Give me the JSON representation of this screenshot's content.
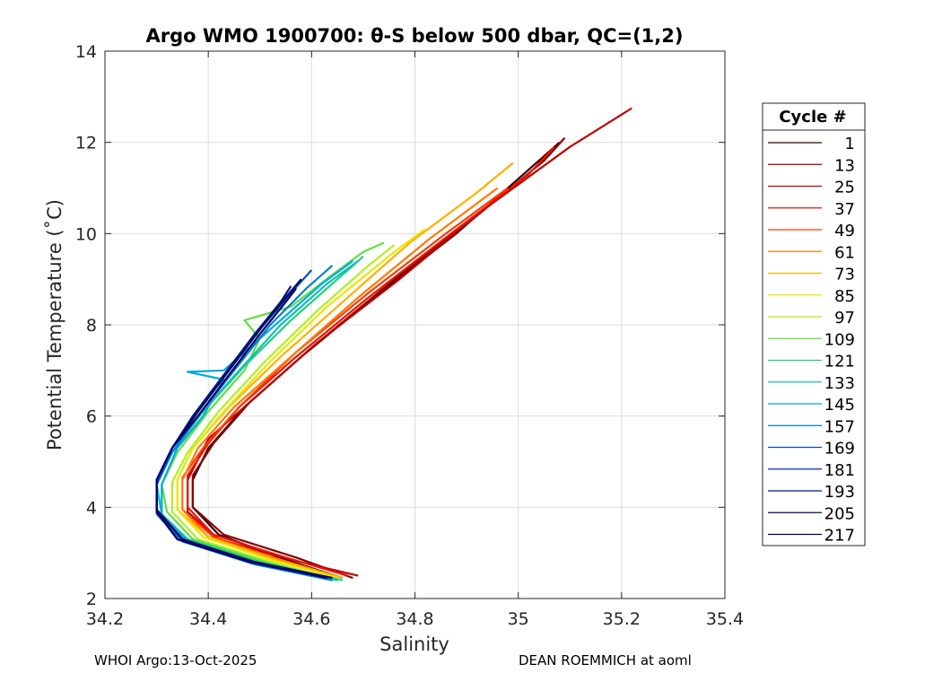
{
  "chart_data": {
    "type": "line",
    "title": "Argo WMO 1900700: θ-S below 500 dbar,  QC=(1,2)",
    "xlabel": "Salinity",
    "ylabel": "Potential Temperature (˚C)",
    "xlim": [
      34.2,
      35.4
    ],
    "ylim": [
      2,
      14
    ],
    "xticks": [
      34.2,
      34.4,
      34.6,
      34.8,
      35,
      35.2,
      35.4
    ],
    "xtick_labels": [
      "34.2",
      "34.4",
      "34.6",
      "34.8",
      "35",
      "35.2",
      "35.4"
    ],
    "yticks": [
      2,
      4,
      6,
      8,
      10,
      12,
      14
    ],
    "ytick_labels": [
      "2",
      "4",
      "6",
      "8",
      "10",
      "12",
      "14"
    ],
    "grid": true,
    "legend": {
      "title": "Cycle #",
      "placement": "right-outside",
      "entries": [
        {
          "label": "1",
          "color": "#3a0000"
        },
        {
          "label": "13",
          "color": "#8b0000"
        },
        {
          "label": "25",
          "color": "#c00000"
        },
        {
          "label": "37",
          "color": "#e81500"
        },
        {
          "label": "49",
          "color": "#ff3a00"
        },
        {
          "label": "61",
          "color": "#ff7a00"
        },
        {
          "label": "73",
          "color": "#ffb000"
        },
        {
          "label": "85",
          "color": "#e8e800"
        },
        {
          "label": "97",
          "color": "#b0f020"
        },
        {
          "label": "109",
          "color": "#60e040"
        },
        {
          "label": "121",
          "color": "#20d080"
        },
        {
          "label": "133",
          "color": "#10c0b0"
        },
        {
          "label": "145",
          "color": "#00a8e0"
        },
        {
          "label": "157",
          "color": "#0080d0"
        },
        {
          "label": "169",
          "color": "#0050c0"
        },
        {
          "label": "181",
          "color": "#0030a0"
        },
        {
          "label": "193",
          "color": "#001880"
        },
        {
          "label": "205",
          "color": "#000c60"
        },
        {
          "label": "217",
          "color": "#000070"
        }
      ]
    },
    "series": [
      {
        "name": "cycle 1",
        "color": "#3a0000",
        "points": [
          [
            34.66,
            2.45
          ],
          [
            34.55,
            2.85
          ],
          [
            34.42,
            3.4
          ],
          [
            34.37,
            4.0
          ],
          [
            34.37,
            4.6
          ],
          [
            34.4,
            5.3
          ],
          [
            34.47,
            6.2
          ],
          [
            34.58,
            7.3
          ],
          [
            34.72,
            8.6
          ],
          [
            34.88,
            10.0
          ],
          [
            35.0,
            11.2
          ],
          [
            35.08,
            12.0
          ]
        ]
      },
      {
        "name": "cycle 13",
        "color": "#8b0000",
        "points": [
          [
            34.68,
            2.45
          ],
          [
            34.57,
            2.9
          ],
          [
            34.43,
            3.4
          ],
          [
            34.37,
            4.0
          ],
          [
            34.37,
            4.7
          ],
          [
            34.41,
            5.4
          ],
          [
            34.48,
            6.3
          ],
          [
            34.6,
            7.5
          ],
          [
            34.75,
            8.9
          ],
          [
            34.91,
            10.3
          ],
          [
            35.05,
            11.6
          ],
          [
            35.09,
            12.1
          ]
        ]
      },
      {
        "name": "cycle 25",
        "color": "#c00000",
        "points": [
          [
            34.69,
            2.5
          ],
          [
            34.56,
            2.85
          ],
          [
            34.42,
            3.3
          ],
          [
            34.36,
            3.9
          ],
          [
            34.36,
            4.6
          ],
          [
            34.4,
            5.5
          ],
          [
            34.49,
            6.4
          ],
          [
            34.61,
            7.6
          ],
          [
            34.77,
            9.0
          ],
          [
            34.93,
            10.5
          ],
          [
            35.1,
            11.9
          ],
          [
            35.22,
            12.75
          ]
        ]
      },
      {
        "name": "cycle 37",
        "color": "#e81500",
        "points": [
          [
            34.67,
            2.5
          ],
          [
            34.55,
            2.9
          ],
          [
            34.41,
            3.4
          ],
          [
            34.36,
            4.0
          ],
          [
            34.36,
            4.7
          ],
          [
            34.4,
            5.4
          ],
          [
            34.46,
            6.2
          ],
          [
            34.57,
            7.3
          ],
          [
            34.71,
            8.6
          ],
          [
            34.87,
            10.0
          ],
          [
            35.02,
            11.3
          ],
          [
            35.07,
            11.9
          ]
        ]
      },
      {
        "name": "cycle 49",
        "color": "#ff3a00",
        "points": [
          [
            34.66,
            2.45
          ],
          [
            34.54,
            2.85
          ],
          [
            34.41,
            3.35
          ],
          [
            34.35,
            3.95
          ],
          [
            34.35,
            4.65
          ],
          [
            34.39,
            5.3
          ],
          [
            34.46,
            6.2
          ],
          [
            34.57,
            7.4
          ],
          [
            34.71,
            8.7
          ],
          [
            34.86,
            10.0
          ],
          [
            34.98,
            11.0
          ]
        ]
      },
      {
        "name": "cycle 61",
        "color": "#ff7a00",
        "points": [
          [
            34.66,
            2.45
          ],
          [
            34.54,
            2.85
          ],
          [
            34.4,
            3.35
          ],
          [
            34.35,
            3.95
          ],
          [
            34.35,
            4.6
          ],
          [
            34.38,
            5.3
          ],
          [
            34.45,
            6.2
          ],
          [
            34.56,
            7.3
          ],
          [
            34.69,
            8.6
          ],
          [
            34.83,
            9.9
          ],
          [
            34.96,
            11.0
          ]
        ]
      },
      {
        "name": "cycle 73",
        "color": "#ffb000",
        "points": [
          [
            34.66,
            2.45
          ],
          [
            34.53,
            2.85
          ],
          [
            34.4,
            3.35
          ],
          [
            34.34,
            3.95
          ],
          [
            34.34,
            4.6
          ],
          [
            34.37,
            5.3
          ],
          [
            34.44,
            6.2
          ],
          [
            34.54,
            7.3
          ],
          [
            34.66,
            8.5
          ],
          [
            34.79,
            9.8
          ],
          [
            34.92,
            10.9
          ],
          [
            34.99,
            11.55
          ]
        ]
      },
      {
        "name": "cycle 85",
        "color": "#e8e800",
        "points": [
          [
            34.65,
            2.45
          ],
          [
            34.52,
            2.85
          ],
          [
            34.39,
            3.35
          ],
          [
            34.34,
            3.95
          ],
          [
            34.34,
            4.6
          ],
          [
            34.37,
            5.3
          ],
          [
            34.43,
            6.1
          ],
          [
            34.52,
            7.2
          ],
          [
            34.63,
            8.4
          ],
          [
            34.76,
            9.6
          ],
          [
            34.82,
            10.1
          ]
        ]
      },
      {
        "name": "cycle 97",
        "color": "#b0f020",
        "points": [
          [
            34.65,
            2.4
          ],
          [
            34.52,
            2.8
          ],
          [
            34.38,
            3.3
          ],
          [
            34.33,
            3.9
          ],
          [
            34.33,
            4.55
          ],
          [
            34.36,
            5.2
          ],
          [
            34.42,
            6.1
          ],
          [
            34.51,
            7.2
          ],
          [
            34.61,
            8.3
          ],
          [
            34.71,
            9.3
          ],
          [
            34.76,
            9.75
          ]
        ]
      },
      {
        "name": "cycle 109",
        "color": "#60e040",
        "points": [
          [
            34.65,
            2.4
          ],
          [
            34.51,
            2.8
          ],
          [
            34.37,
            3.3
          ],
          [
            34.32,
            3.9
          ],
          [
            34.31,
            4.5
          ],
          [
            34.34,
            5.2
          ],
          [
            34.4,
            6.1
          ],
          [
            34.47,
            7.0
          ],
          [
            34.5,
            7.7
          ],
          [
            34.47,
            8.1
          ],
          [
            34.56,
            8.4
          ],
          [
            34.64,
            9.1
          ],
          [
            34.7,
            9.6
          ],
          [
            34.74,
            9.8
          ]
        ]
      },
      {
        "name": "cycle 121",
        "color": "#20d080",
        "points": [
          [
            34.66,
            2.4
          ],
          [
            34.5,
            2.8
          ],
          [
            34.36,
            3.3
          ],
          [
            34.31,
            3.85
          ],
          [
            34.3,
            4.5
          ],
          [
            34.33,
            5.2
          ],
          [
            34.39,
            6.1
          ],
          [
            34.47,
            7.1
          ],
          [
            34.56,
            8.1
          ],
          [
            34.65,
            9.0
          ],
          [
            34.7,
            9.5
          ]
        ]
      },
      {
        "name": "cycle 133",
        "color": "#10c0b0",
        "points": [
          [
            34.65,
            2.4
          ],
          [
            34.5,
            2.75
          ],
          [
            34.36,
            3.3
          ],
          [
            34.31,
            3.85
          ],
          [
            34.3,
            4.5
          ],
          [
            34.33,
            5.3
          ],
          [
            34.38,
            6.0
          ],
          [
            34.46,
            7.0
          ],
          [
            34.54,
            8.0
          ],
          [
            34.63,
            8.9
          ],
          [
            34.69,
            9.4
          ]
        ]
      },
      {
        "name": "cycle 145",
        "color": "#00a8e0",
        "points": [
          [
            34.64,
            2.4
          ],
          [
            34.5,
            2.75
          ],
          [
            34.36,
            3.25
          ],
          [
            34.31,
            3.85
          ],
          [
            34.31,
            4.5
          ],
          [
            34.34,
            5.3
          ],
          [
            34.39,
            6.0
          ],
          [
            34.43,
            6.8
          ],
          [
            34.36,
            6.97
          ],
          [
            34.43,
            7.0
          ],
          [
            34.48,
            7.5
          ],
          [
            34.55,
            8.2
          ],
          [
            34.62,
            8.9
          ],
          [
            34.68,
            9.4
          ]
        ]
      },
      {
        "name": "cycle 157",
        "color": "#0080d0",
        "points": [
          [
            34.64,
            2.4
          ],
          [
            34.49,
            2.75
          ],
          [
            34.35,
            3.25
          ],
          [
            34.3,
            3.85
          ],
          [
            34.3,
            4.5
          ],
          [
            34.33,
            5.2
          ],
          [
            34.38,
            6.0
          ],
          [
            34.45,
            7.0
          ],
          [
            34.52,
            8.0
          ],
          [
            34.59,
            8.8
          ],
          [
            34.64,
            9.3
          ]
        ]
      },
      {
        "name": "cycle 169",
        "color": "#0050c0",
        "points": [
          [
            34.64,
            2.45
          ],
          [
            34.49,
            2.8
          ],
          [
            34.35,
            3.3
          ],
          [
            34.3,
            3.9
          ],
          [
            34.3,
            4.5
          ],
          [
            34.33,
            5.3
          ],
          [
            34.38,
            6.1
          ],
          [
            34.44,
            7.0
          ],
          [
            34.5,
            7.9
          ],
          [
            34.56,
            8.7
          ],
          [
            34.6,
            9.2
          ]
        ]
      },
      {
        "name": "cycle 181",
        "color": "#0030a0",
        "points": [
          [
            34.63,
            2.45
          ],
          [
            34.48,
            2.8
          ],
          [
            34.35,
            3.3
          ],
          [
            34.3,
            3.9
          ],
          [
            34.3,
            4.6
          ],
          [
            34.33,
            5.3
          ],
          [
            34.38,
            6.1
          ],
          [
            34.44,
            7.0
          ],
          [
            34.5,
            7.9
          ],
          [
            34.55,
            8.6
          ],
          [
            34.58,
            9.0
          ]
        ]
      },
      {
        "name": "cycle 193",
        "color": "#001880",
        "points": [
          [
            34.63,
            2.45
          ],
          [
            34.48,
            2.8
          ],
          [
            34.34,
            3.3
          ],
          [
            34.3,
            3.9
          ],
          [
            34.3,
            4.6
          ],
          [
            34.33,
            5.3
          ],
          [
            34.37,
            6.0
          ],
          [
            34.43,
            6.9
          ],
          [
            34.49,
            7.8
          ],
          [
            34.54,
            8.5
          ],
          [
            34.56,
            8.85
          ]
        ]
      },
      {
        "name": "cycle 205",
        "color": "#000c60",
        "points": [
          [
            34.64,
            2.45
          ],
          [
            34.49,
            2.8
          ],
          [
            34.35,
            3.3
          ],
          [
            34.3,
            3.95
          ],
          [
            34.3,
            4.6
          ],
          [
            34.33,
            5.3
          ],
          [
            34.38,
            6.1
          ],
          [
            34.44,
            7.0
          ],
          [
            34.5,
            7.9
          ],
          [
            34.55,
            8.6
          ],
          [
            34.58,
            9.0
          ]
        ]
      },
      {
        "name": "cycle 217",
        "color": "#000070",
        "points": [
          [
            34.63,
            2.45
          ],
          [
            34.48,
            2.8
          ],
          [
            34.34,
            3.3
          ],
          [
            34.3,
            3.9
          ],
          [
            34.3,
            4.6
          ],
          [
            34.33,
            5.3
          ],
          [
            34.38,
            6.0
          ],
          [
            34.44,
            6.9
          ],
          [
            34.5,
            7.8
          ],
          [
            34.55,
            8.5
          ],
          [
            34.57,
            8.8
          ]
        ]
      }
    ]
  },
  "footer": {
    "left": "WHOI Argo:13-Oct-2025",
    "right": "DEAN ROEMMICH at aoml"
  }
}
